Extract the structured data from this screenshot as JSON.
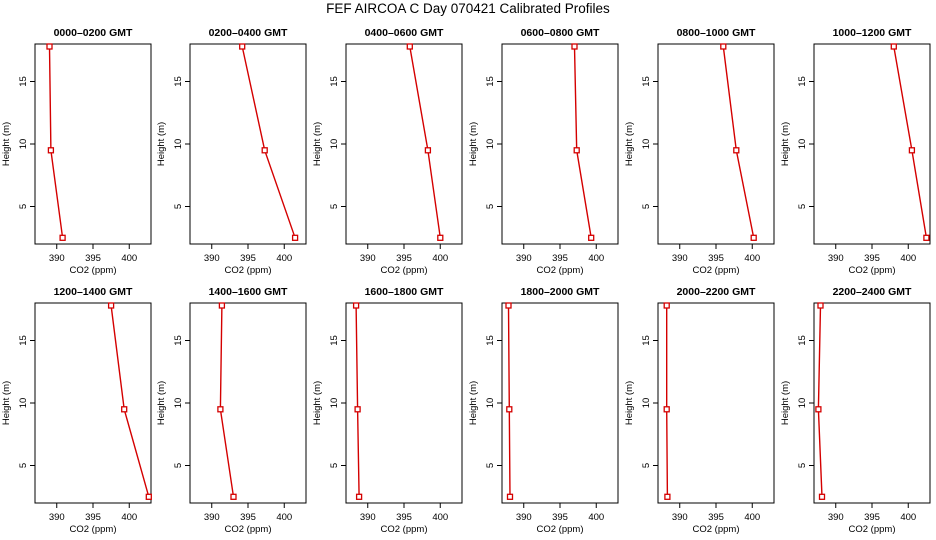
{
  "title": "FEF AIRCOA C  Day 070421  Calibrated Profiles",
  "style": {
    "series_color": "#d40000",
    "axis_color": "#000000"
  },
  "chart_data": [
    {
      "type": "line",
      "title": "0000–0200 GMT",
      "xlabel": "CO2 (ppm)",
      "ylabel": "Height (m)",
      "xlim": [
        387,
        403
      ],
      "ylim": [
        2,
        18
      ],
      "xticks": [
        390,
        395,
        400
      ],
      "yticks": [
        5,
        10,
        15
      ],
      "series": [
        {
          "x": [
            390.8,
            389.2,
            389.0
          ],
          "y": [
            2.5,
            9.5,
            17.8
          ]
        }
      ]
    },
    {
      "type": "line",
      "title": "0200–0400 GMT",
      "xlabel": "CO2 (ppm)",
      "ylabel": "Height (m)",
      "xlim": [
        387,
        403
      ],
      "ylim": [
        2,
        18
      ],
      "xticks": [
        390,
        395,
        400
      ],
      "yticks": [
        5,
        10,
        15
      ],
      "series": [
        {
          "x": [
            401.5,
            397.3,
            394.2
          ],
          "y": [
            2.5,
            9.5,
            17.8
          ]
        }
      ]
    },
    {
      "type": "line",
      "title": "0400–0600 GMT",
      "xlabel": "CO2 (ppm)",
      "ylabel": "Height (m)",
      "xlim": [
        387,
        403
      ],
      "ylim": [
        2,
        18
      ],
      "xticks": [
        390,
        395,
        400
      ],
      "yticks": [
        5,
        10,
        15
      ],
      "series": [
        {
          "x": [
            400.0,
            398.3,
            395.8
          ],
          "y": [
            2.5,
            9.5,
            17.8
          ]
        }
      ]
    },
    {
      "type": "line",
      "title": "0600–0800 GMT",
      "xlabel": "CO2 (ppm)",
      "ylabel": "Height (m)",
      "xlim": [
        387,
        403
      ],
      "ylim": [
        2,
        18
      ],
      "xticks": [
        390,
        395,
        400
      ],
      "yticks": [
        5,
        10,
        15
      ],
      "series": [
        {
          "x": [
            399.3,
            397.3,
            397.0
          ],
          "y": [
            2.5,
            9.5,
            17.8
          ]
        }
      ]
    },
    {
      "type": "line",
      "title": "0800–1000 GMT",
      "xlabel": "CO2 (ppm)",
      "ylabel": "Height (m)",
      "xlim": [
        387,
        403
      ],
      "ylim": [
        2,
        18
      ],
      "xticks": [
        390,
        395,
        400
      ],
      "yticks": [
        5,
        10,
        15
      ],
      "series": [
        {
          "x": [
            400.2,
            397.8,
            396.0
          ],
          "y": [
            2.5,
            9.5,
            17.8
          ]
        }
      ]
    },
    {
      "type": "line",
      "title": "1000–1200 GMT",
      "xlabel": "CO2 (ppm)",
      "ylabel": "Height (m)",
      "xlim": [
        387,
        403
      ],
      "ylim": [
        2,
        18
      ],
      "xticks": [
        390,
        395,
        400
      ],
      "yticks": [
        5,
        10,
        15
      ],
      "series": [
        {
          "x": [
            402.5,
            400.5,
            398.0
          ],
          "y": [
            2.5,
            9.5,
            17.8
          ]
        }
      ]
    },
    {
      "type": "line",
      "title": "1200–1400 GMT",
      "xlabel": "CO2 (ppm)",
      "ylabel": "Height (m)",
      "xlim": [
        387,
        403
      ],
      "ylim": [
        2,
        18
      ],
      "xticks": [
        390,
        395,
        400
      ],
      "yticks": [
        5,
        10,
        15
      ],
      "series": [
        {
          "x": [
            402.7,
            399.3,
            397.5
          ],
          "y": [
            2.5,
            9.5,
            17.8
          ]
        }
      ]
    },
    {
      "type": "line",
      "title": "1400–1600 GMT",
      "xlabel": "CO2 (ppm)",
      "ylabel": "Height (m)",
      "xlim": [
        387,
        403
      ],
      "ylim": [
        2,
        18
      ],
      "xticks": [
        390,
        395,
        400
      ],
      "yticks": [
        5,
        10,
        15
      ],
      "series": [
        {
          "x": [
            393.0,
            391.2,
            391.4
          ],
          "y": [
            2.5,
            9.5,
            17.8
          ]
        }
      ]
    },
    {
      "type": "line",
      "title": "1600–1800 GMT",
      "xlabel": "CO2 (ppm)",
      "ylabel": "Height (m)",
      "xlim": [
        387,
        403
      ],
      "ylim": [
        2,
        18
      ],
      "xticks": [
        390,
        395,
        400
      ],
      "yticks": [
        5,
        10,
        15
      ],
      "series": [
        {
          "x": [
            388.8,
            388.6,
            388.4
          ],
          "y": [
            2.5,
            9.5,
            17.8
          ]
        }
      ]
    },
    {
      "type": "line",
      "title": "1800–2000 GMT",
      "xlabel": "CO2 (ppm)",
      "ylabel": "Height (m)",
      "xlim": [
        387,
        403
      ],
      "ylim": [
        2,
        18
      ],
      "xticks": [
        390,
        395,
        400
      ],
      "yticks": [
        5,
        10,
        15
      ],
      "series": [
        {
          "x": [
            388.1,
            388.0,
            387.9
          ],
          "y": [
            2.5,
            9.5,
            17.8
          ]
        }
      ]
    },
    {
      "type": "line",
      "title": "2000–2200 GMT",
      "xlabel": "CO2 (ppm)",
      "ylabel": "Height (m)",
      "xlim": [
        387,
        403
      ],
      "ylim": [
        2,
        18
      ],
      "xticks": [
        390,
        395,
        400
      ],
      "yticks": [
        5,
        10,
        15
      ],
      "series": [
        {
          "x": [
            388.3,
            388.2,
            388.2
          ],
          "y": [
            2.5,
            9.5,
            17.8
          ]
        }
      ]
    },
    {
      "type": "line",
      "title": "2200–2400 GMT",
      "xlabel": "CO2 (ppm)",
      "ylabel": "Height (m)",
      "xlim": [
        387,
        403
      ],
      "ylim": [
        2,
        18
      ],
      "xticks": [
        390,
        395,
        400
      ],
      "yticks": [
        5,
        10,
        15
      ],
      "series": [
        {
          "x": [
            388.1,
            387.6,
            387.9
          ],
          "y": [
            2.5,
            9.5,
            17.8
          ]
        }
      ]
    }
  ]
}
